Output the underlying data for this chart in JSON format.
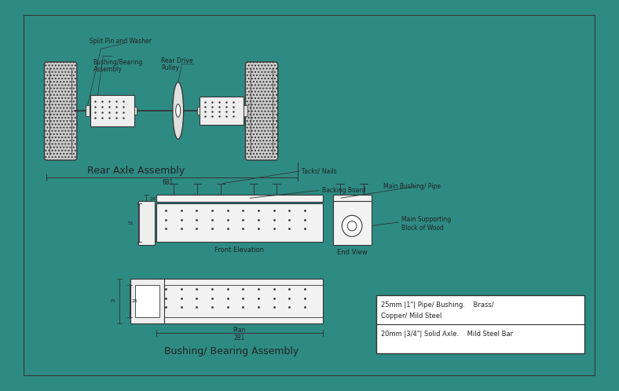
{
  "bg_outer": "#2e8b84",
  "bg_inner": "#ffffff",
  "line_color": "#333333",
  "title_rear": "Rear Axle Assembly",
  "title_bushing": "Bushing/ Bearing Assembly",
  "label_split_pin": "Split Pin and Washer",
  "label_bushing": "Bushing/Bearing\nAssembly",
  "label_rear_drive": "Rear Drive\nPulley",
  "label_tacks": "Tacks/ Nails",
  "label_backing": "Backing Board",
  "label_main_bushing": "Main Bushing/ Pipe",
  "label_main_block": "Main Supporting\nBlock of Wood",
  "label_front_elev": "Front Elevation",
  "label_end_view": "End View",
  "label_plan": "Plan",
  "dim_681": "681",
  "dim_281": "281",
  "dim_51": "51",
  "dim_25": "25",
  "dim_75": "75",
  "dim_24": "24",
  "materials_line1": "25mm |1\"| Pipe/ Bushing.    Brass/",
  "materials_line2": "Copper/ Mild Steel",
  "materials_line3": "20mm |3/4\"| Solid Axle.    Mild Steel Bar"
}
